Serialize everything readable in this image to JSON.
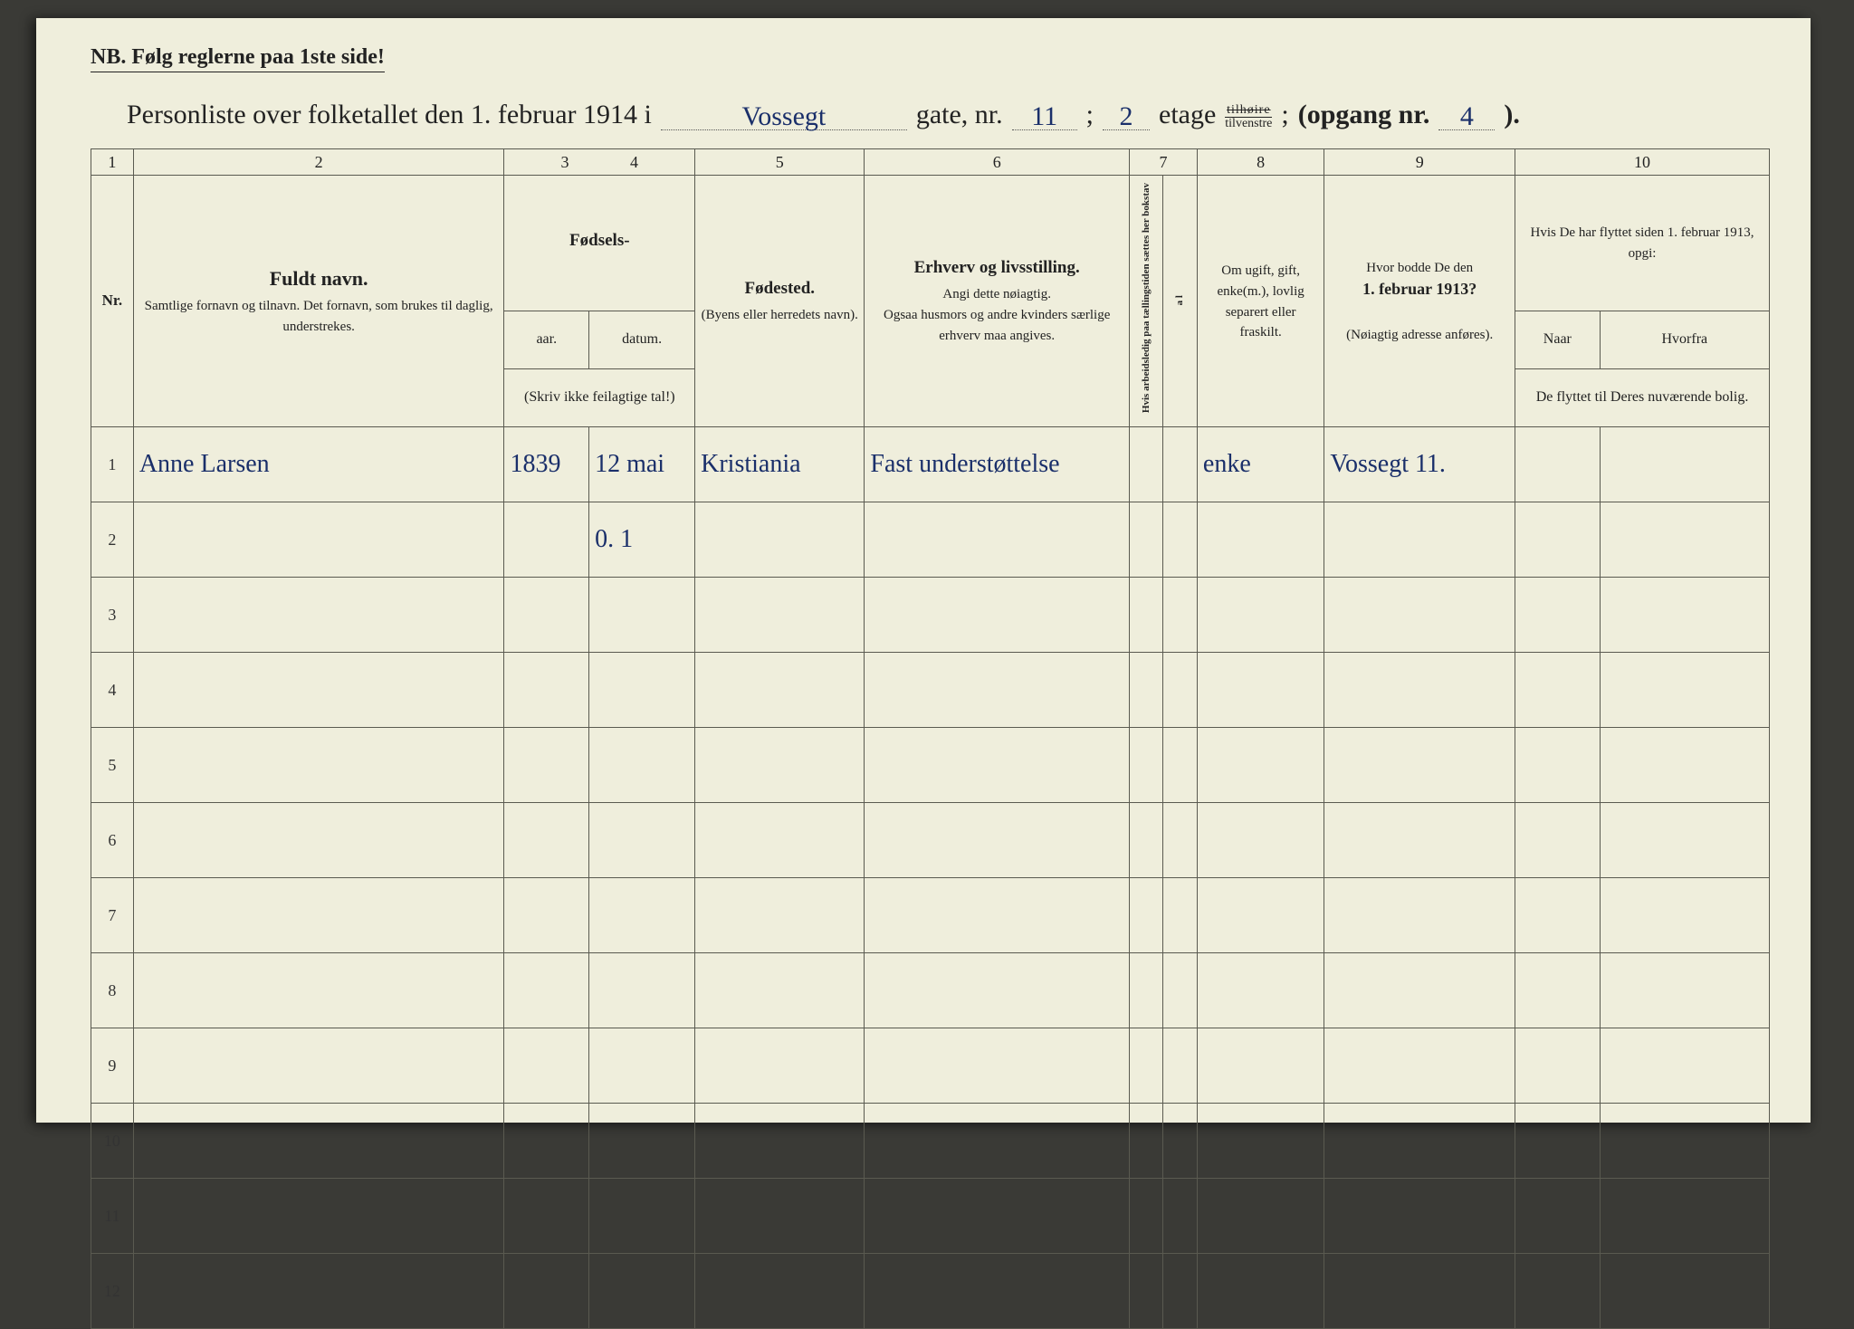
{
  "nb": {
    "prefix": "NB.",
    "text": "Følg reglerne paa 1ste side!"
  },
  "title": {
    "lead": "Personliste over folketallet den 1. februar 1914 i",
    "street": "Vossegt",
    "gate_nr_label": "gate, nr.",
    "gate_nr": "11",
    "semi": ";",
    "etage_val": "2",
    "etage_label": "etage",
    "etage_top": "tilhøire",
    "etage_bot": "tilvenstre",
    "semi2": ";",
    "opgang_label": "(opgang nr.",
    "opgang": "4",
    "close": ")."
  },
  "colnums": [
    "1",
    "2",
    "3",
    "4",
    "5",
    "6",
    "7",
    "8",
    "9",
    "10"
  ],
  "headers": {
    "nr": "Nr.",
    "name_big": "Fuldt navn.",
    "name_small": "Samtlige fornavn og tilnavn.  Det fornavn, som brukes til daglig, understrekes.",
    "fodsels": "Fødsels-",
    "aar": "aar.",
    "datum": "datum.",
    "fodsels_note": "(Skriv ikke feilagtige tal!)",
    "fodested_big": "Fødested.",
    "fodested_small": "(Byens eller herredets navn).",
    "erhverv_big": "Erhverv og livsstilling.",
    "erhverv_small1": "Angi dette nøiagtig.",
    "erhverv_small2": "Ogsaa husmors og andre kvinders særlige erhverv maa angives.",
    "col7_vert": "Hvis arbeidsledig paa tællingstiden sættes her bokstav",
    "col7b_vert": "a l",
    "col8": "Om ugift, gift, enke(m.), lovlig separert eller fraskilt.",
    "col9_lead": "Hvor bodde De den",
    "col9_bold": "1. februar 1913?",
    "col9_small": "(Nøiagtig adresse anføres).",
    "col10_top": "Hvis De har flyttet siden 1. februar 1913, opgi:",
    "col10_naar": "Naar",
    "col10_hvorfra": "Hvorfra",
    "col10_bot": "De flyttet til Deres nuværende bolig."
  },
  "rows": [
    {
      "nr": "1",
      "name": "Anne Larsen",
      "aar": "1839",
      "datum": "12 mai",
      "fodested": "Kristiania",
      "erhverv": "Fast understøttelse",
      "c7": "",
      "c7b": "",
      "c8": "enke",
      "c9": "Vossegt 11.",
      "c10a": "",
      "c10b": ""
    },
    {
      "nr": "2",
      "name": "",
      "aar": "",
      "datum": "0. 1",
      "fodested": "",
      "erhverv": "",
      "c7": "",
      "c7b": "",
      "c8": "",
      "c9": "",
      "c10a": "",
      "c10b": ""
    },
    {
      "nr": "3"
    },
    {
      "nr": "4"
    },
    {
      "nr": "5"
    },
    {
      "nr": "6"
    },
    {
      "nr": "7"
    },
    {
      "nr": "8"
    },
    {
      "nr": "9"
    },
    {
      "nr": "10"
    },
    {
      "nr": "11"
    },
    {
      "nr": "12"
    }
  ],
  "colors": {
    "page_bg": "#efeedc",
    "ink": "#222222",
    "pen": "#1a2f6a",
    "rule": "#5a5a50"
  }
}
